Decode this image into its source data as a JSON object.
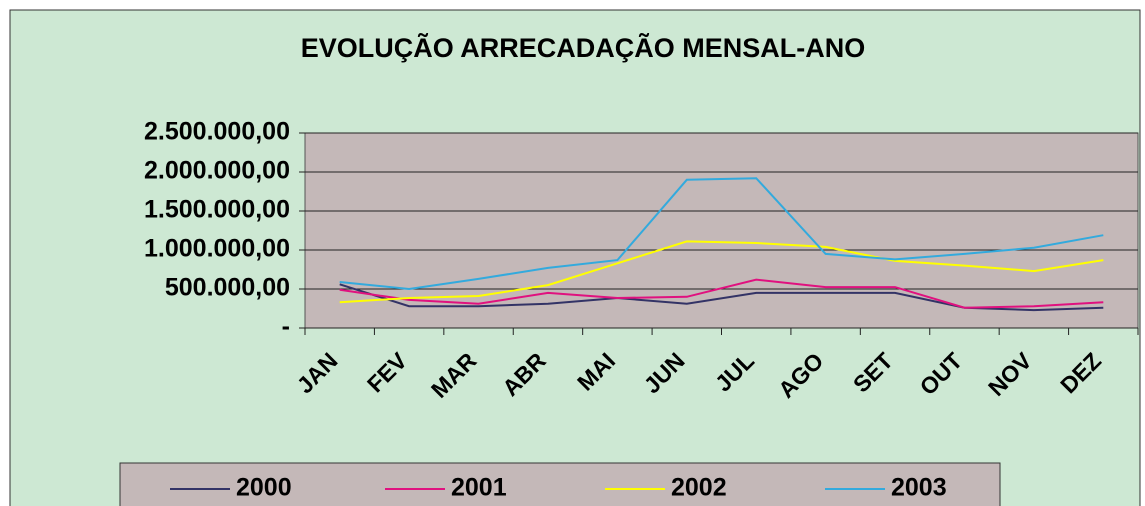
{
  "chart_data": {
    "type": "line",
    "title": "EVOLUÇÃO ARRECADAÇÃO MENSAL-ANO",
    "categories": [
      "JAN",
      "FEV",
      "MAR",
      "ABR",
      "MAI",
      "JUN",
      "JUL",
      "AGO",
      "SET",
      "OUT",
      "NOV",
      "DEZ"
    ],
    "ylim": [
      0,
      2500000
    ],
    "yticks": [
      {
        "value": 0,
        "label": "-"
      },
      {
        "value": 500000,
        "label": "500.000,00"
      },
      {
        "value": 1000000,
        "label": "1.000.000,00"
      },
      {
        "value": 1500000,
        "label": "1.500.000,00"
      },
      {
        "value": 2000000,
        "label": "2.000.000,00"
      },
      {
        "value": 2500000,
        "label": "2.500.000,00"
      }
    ],
    "grid": true,
    "legend": "bottom",
    "series": [
      {
        "name": "2000",
        "color": "#333366",
        "values": [
          560000,
          280000,
          280000,
          310000,
          385000,
          310000,
          450000,
          450000,
          450000,
          260000,
          230000,
          260000
        ]
      },
      {
        "name": "2001",
        "color": "#e0117f",
        "values": [
          490000,
          360000,
          310000,
          450000,
          385000,
          400000,
          620000,
          525000,
          525000,
          260000,
          280000,
          330000
        ]
      },
      {
        "name": "2002",
        "color": "#ffff00",
        "values": [
          330000,
          385000,
          410000,
          550000,
          830000,
          1110000,
          1090000,
          1040000,
          860000,
          800000,
          730000,
          870000
        ]
      },
      {
        "name": "2003",
        "color": "#33aadd",
        "values": [
          590000,
          500000,
          630000,
          770000,
          870000,
          1900000,
          1920000,
          950000,
          880000,
          950000,
          1030000,
          1190000
        ]
      }
    ]
  }
}
